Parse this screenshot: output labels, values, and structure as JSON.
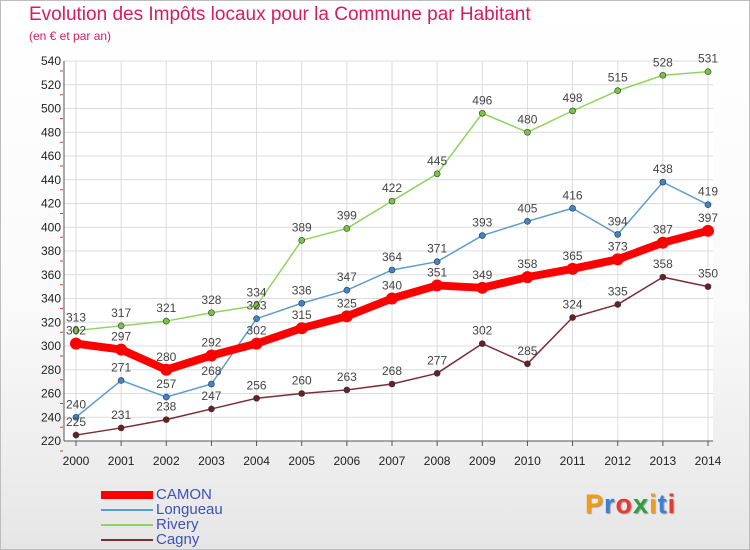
{
  "header": {
    "title": "Evolution des Impôts locaux pour la Commune par Habitant",
    "subtitle": "(en € et par an)"
  },
  "logo": {
    "text": "Proxiti",
    "letter_colors": [
      "#f39c12",
      "#3f7fd1",
      "#e53935",
      "#2e9e3f",
      "#f39c12",
      "#3f7fd1",
      "#e53935"
    ]
  },
  "chart_data": {
    "type": "line",
    "categories": [
      "2000",
      "2001",
      "2002",
      "2003",
      "2004",
      "2005",
      "2006",
      "2007",
      "2008",
      "2009",
      "2010",
      "2011",
      "2012",
      "2013",
      "2014"
    ],
    "ylim": [
      220,
      540
    ],
    "yticks": [
      220,
      240,
      260,
      280,
      300,
      320,
      340,
      360,
      380,
      400,
      420,
      440,
      460,
      480,
      500,
      520,
      540
    ],
    "grid": true,
    "legend_position": "bottom-left",
    "series": [
      {
        "name": "Rivery",
        "color": "#8cd55a",
        "point_color": "#78c540",
        "values": [
          313,
          317,
          321,
          328,
          334,
          389,
          399,
          422,
          445,
          496,
          480,
          498,
          515,
          528,
          531
        ]
      },
      {
        "name": "Longueau",
        "color": "#5d9bd1",
        "point_color": "#3d86c8",
        "values": [
          240,
          271,
          257,
          268,
          323,
          336,
          347,
          364,
          371,
          393,
          405,
          416,
          394,
          438,
          419
        ]
      },
      {
        "name": "Cagny",
        "color": "#7b2c35",
        "point_color": "#6a1f28",
        "values": [
          225,
          231,
          238,
          247,
          256,
          260,
          263,
          268,
          277,
          302,
          285,
          324,
          335,
          358,
          350
        ]
      },
      {
        "name": "CAMON",
        "color": "#ff0000",
        "point_color": "#ff0000",
        "values": [
          302,
          297,
          280,
          292,
          302,
          315,
          325,
          340,
          351,
          349,
          358,
          365,
          373,
          387,
          397
        ]
      }
    ],
    "data_labels": [
      {
        "series": "Rivery",
        "labels": [
          "313",
          "317",
          "321",
          "328",
          "334",
          "389",
          "399",
          "422",
          "445",
          "496",
          "480",
          "498",
          "515",
          "528",
          "531"
        ]
      },
      {
        "series": "Longueau",
        "labels": [
          "240",
          "271",
          "257",
          "268",
          "323",
          "336",
          "347",
          "364",
          "371",
          "393",
          "405",
          "416",
          "394",
          "438",
          "419"
        ]
      },
      {
        "series": "Cagny",
        "labels": [
          "225",
          "231",
          "238",
          "247",
          "256",
          "260",
          "263",
          "268",
          "277",
          "302",
          "285",
          "324",
          "335",
          "358",
          "350"
        ]
      },
      {
        "series": "CAMON",
        "labels": [
          "302",
          "297",
          "280",
          "292",
          "302",
          "315",
          "325",
          "340",
          "351",
          "349",
          "358",
          "365",
          "373",
          "387",
          "397"
        ]
      }
    ],
    "legend_order": [
      "CAMON",
      "Longueau",
      "Rivery",
      "Cagny"
    ]
  }
}
